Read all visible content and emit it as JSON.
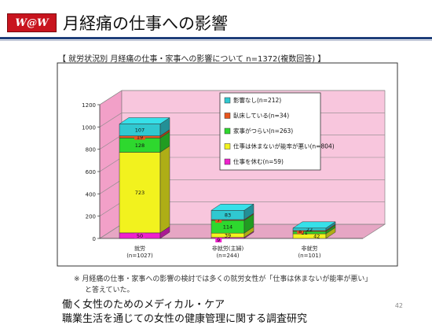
{
  "header": {
    "logo_text": "W@W",
    "title": "月経痛の仕事への影響"
  },
  "chart_title": "【 就労状況別 月経痛の仕事・家事への影響について n=1372(複数回答) 】",
  "chart_data": {
    "type": "bar",
    "stacked": true,
    "three_d": true,
    "ylim": [
      0,
      1200
    ],
    "yticks": [
      0,
      200,
      400,
      600,
      800,
      1000,
      1200
    ],
    "categories": [
      "就労",
      "非就労(主婦)",
      "非就労"
    ],
    "category_n": [
      "(n=1027)",
      "(n=244)",
      "(n=101)"
    ],
    "series": [
      {
        "name": "仕事を休む(n=59)",
        "color": "#ee22cc",
        "values": [
          50,
          9,
          0
        ]
      },
      {
        "name": "仕事は休まないが能率が悪い(n=804)",
        "color": "#f2f21e",
        "values": [
          723,
          39,
          42
        ]
      },
      {
        "name": "家事がつらい(n=263)",
        "color": "#2ed82e",
        "values": [
          128,
          114,
          21
        ]
      },
      {
        "name": "臥床している(n=34)",
        "color": "#e8561e",
        "values": [
          19,
          7,
          8
        ]
      },
      {
        "name": "影響なし(n=212)",
        "color": "#30c8d0",
        "values": [
          107,
          83,
          22
        ]
      }
    ],
    "legend_position": "top-right",
    "grid": true
  },
  "note_lines": [
    "※ 月経痛の仕事・家事への影響の検討では多くの就労女性が「仕事は休まないが能率が悪い」",
    "と答えていた。"
  ],
  "footer": {
    "line1": "働く女性のためのメディカル・ケア",
    "line2": "職業生活を通じての女性の健康管理に関する調査研究"
  },
  "page_number": "42"
}
